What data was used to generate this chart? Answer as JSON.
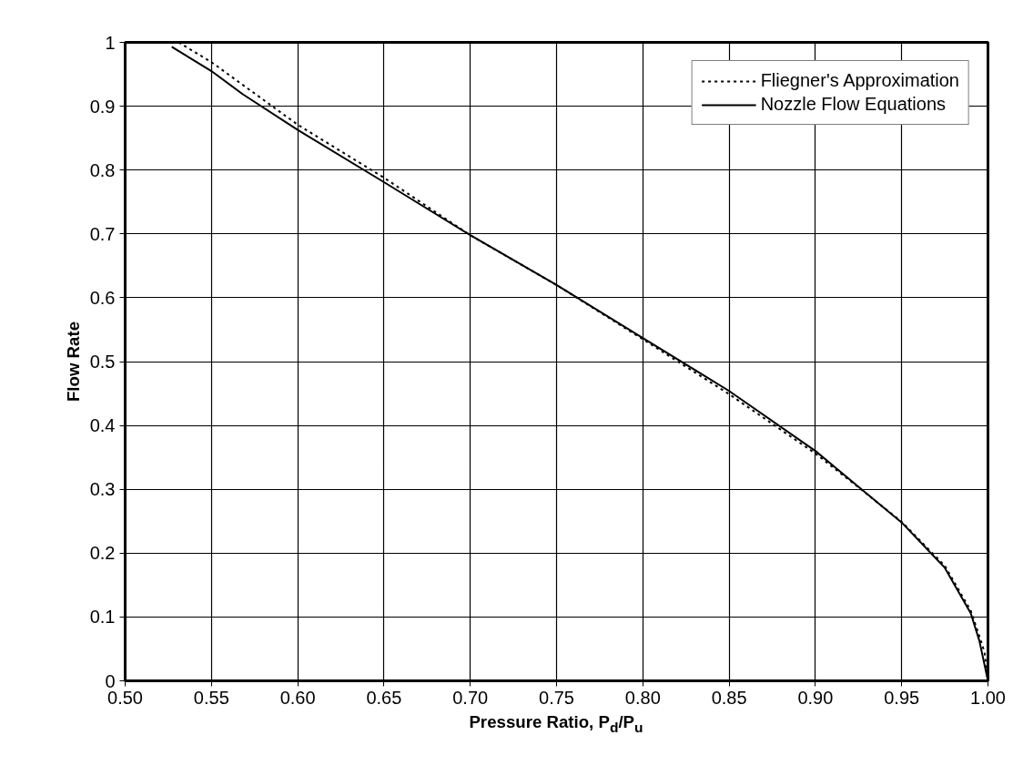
{
  "chart_data": {
    "type": "line",
    "xlabel": "Pressure Ratio, P$_{d}$/P$_{u}$",
    "ylabel": "Flow Rate",
    "series": [
      {
        "name": "Fliegner's Approximation",
        "color": "#000000",
        "line_style": "dotted",
        "x": [
          0.531,
          0.55,
          0.6,
          0.65,
          0.7,
          0.75,
          0.8,
          0.85,
          0.9,
          0.925,
          0.95,
          0.975,
          0.99,
          0.995,
          0.998,
          1.0
        ],
        "values": [
          1.0,
          0.969,
          0.871,
          0.788,
          0.698,
          0.62,
          0.535,
          0.449,
          0.356,
          0.303,
          0.249,
          0.18,
          0.11,
          0.07,
          0.045,
          0.0
        ]
      },
      {
        "name": "Nozzle Flow Equations",
        "color": "#000000",
        "line_style": "solid",
        "x": [
          0.527,
          0.55,
          0.568,
          0.6,
          0.65,
          0.7,
          0.75,
          0.8,
          0.85,
          0.9,
          0.925,
          0.95,
          0.975,
          0.99,
          0.995,
          1.0
        ],
        "values": [
          0.993,
          0.955,
          0.919,
          0.863,
          0.781,
          0.698,
          0.62,
          0.537,
          0.454,
          0.36,
          0.304,
          0.248,
          0.177,
          0.106,
          0.063,
          0.0
        ]
      }
    ],
    "xlim": [
      0.5,
      1.0
    ],
    "ylim": [
      0,
      1
    ],
    "xticks": [
      {
        "value": 0.5,
        "label": "0.50"
      },
      {
        "value": 0.55,
        "label": "0.55"
      },
      {
        "value": 0.6,
        "label": "0.60"
      },
      {
        "value": 0.65,
        "label": "0.65"
      },
      {
        "value": 0.7,
        "label": "0.70"
      },
      {
        "value": 0.75,
        "label": "0.75"
      },
      {
        "value": 0.8,
        "label": "0.80"
      },
      {
        "value": 0.85,
        "label": "0.85"
      },
      {
        "value": 0.9,
        "label": "0.90"
      },
      {
        "value": 0.95,
        "label": "0.95"
      },
      {
        "value": 1.0,
        "label": "1.00"
      }
    ],
    "yticks": [
      0,
      0.1,
      0.2,
      0.3,
      0.4,
      0.5,
      0.6,
      0.7,
      0.8,
      0.9,
      1
    ],
    "grid": true,
    "legend": "top right"
  }
}
